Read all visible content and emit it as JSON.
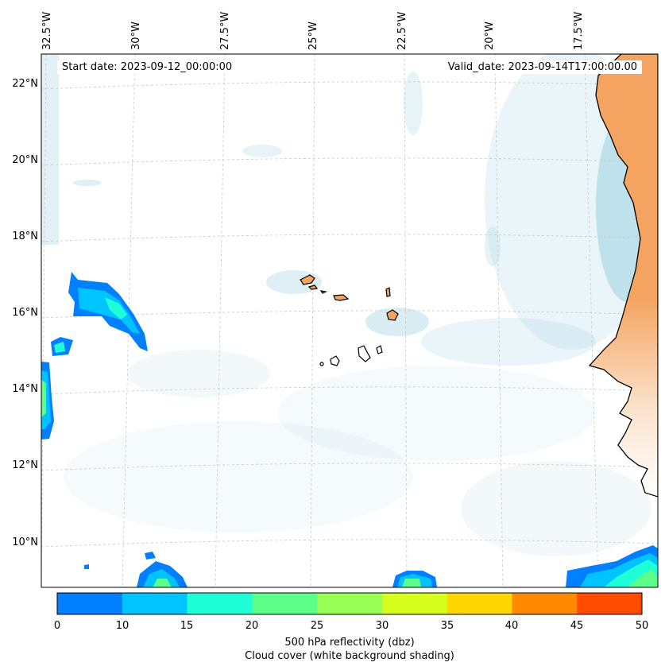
{
  "header": {
    "start_date": "Start date: 2023-09-12_00:00:00",
    "valid_date": "Valid_date: 2023-09-14T17:00:00.00"
  },
  "axes": {
    "lon_labels": [
      "32.5°W",
      "30°W",
      "27.5°W",
      "25°W",
      "22.5°W",
      "20°W",
      "17.5°W"
    ],
    "lat_labels": [
      "22°N",
      "20°N",
      "18°N",
      "16°N",
      "14°N",
      "12°N",
      "10°N"
    ]
  },
  "colorbar": {
    "ticks": [
      "0",
      "10",
      "15",
      "20",
      "25",
      "30",
      "35",
      "40",
      "45",
      "50"
    ],
    "colors": [
      "#0080ff",
      "#00c4ff",
      "#1effd8",
      "#5cff8a",
      "#98ff55",
      "#d6ff1e",
      "#ffd600",
      "#ff8a00",
      "#ff4c00"
    ],
    "label_line1": "500 hPa reflectivity (dbz)",
    "label_line2": "Cloud cover (white background shading)"
  },
  "map": {
    "land_color": "#f4a460",
    "cloud_color": "#add8e6",
    "ocean_color": "#ffffff"
  }
}
